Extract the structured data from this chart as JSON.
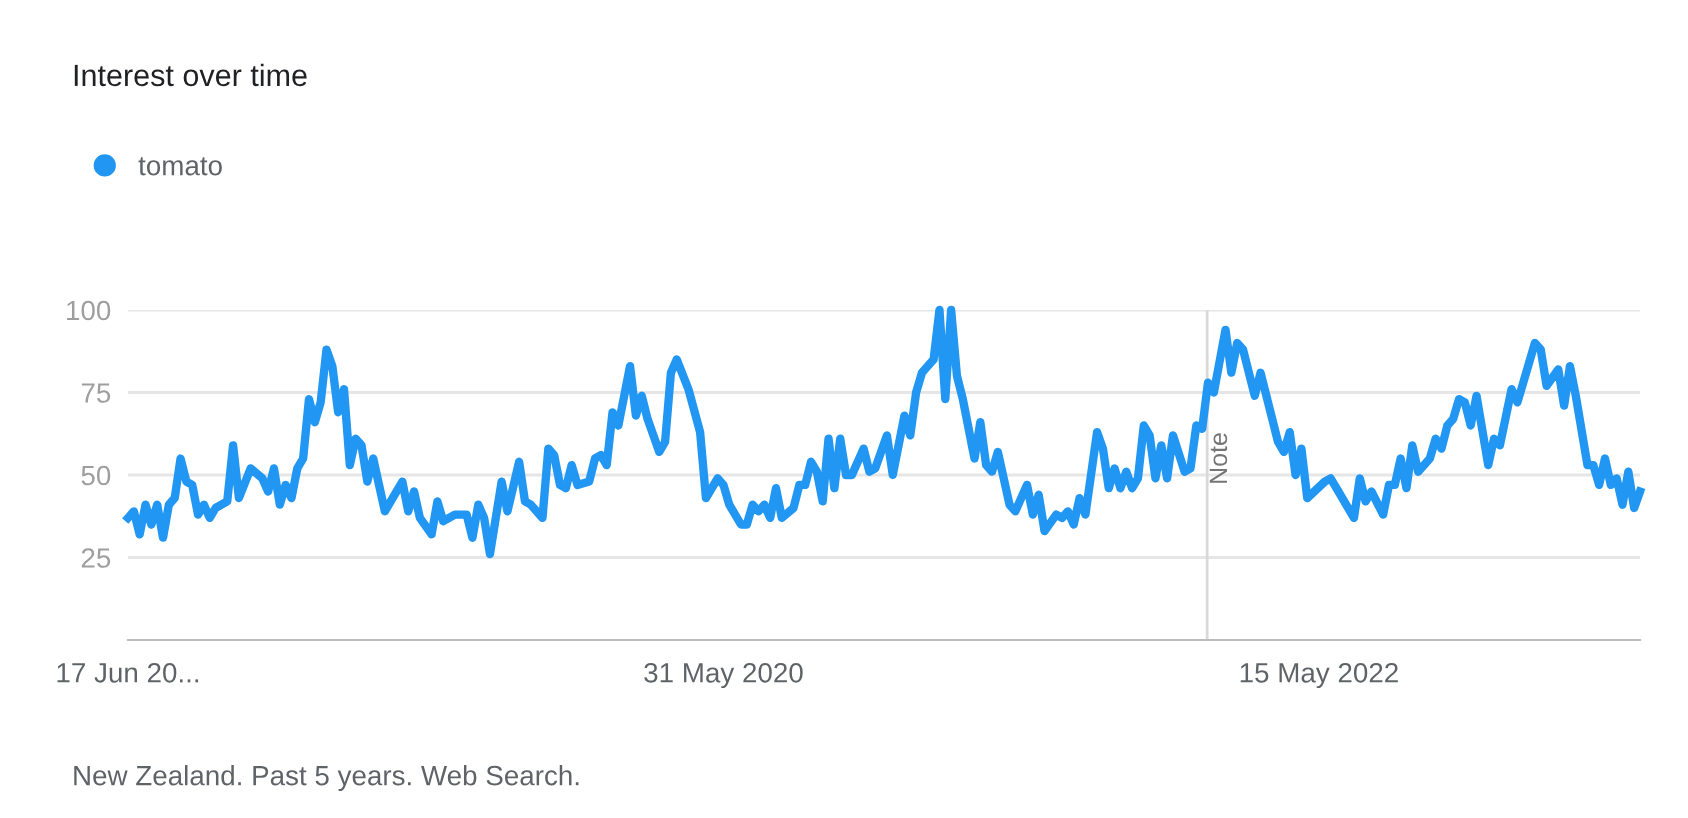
{
  "chart_data": {
    "type": "line",
    "title": "Interest over time",
    "x": [
      "2018-06-17",
      "2018-06-24",
      "2018-07-01",
      "2018-07-08",
      "2018-07-15",
      "2018-07-22",
      "2018-07-29",
      "2018-08-05",
      "2018-08-12",
      "2018-08-19",
      "2018-08-26",
      "2018-09-02",
      "2018-09-09",
      "2018-09-16",
      "2018-09-23",
      "2018-09-30",
      "2018-10-14",
      "2018-10-21",
      "2018-10-28",
      "2018-11-11",
      "2018-11-25",
      "2018-12-02",
      "2018-12-09",
      "2018-12-16",
      "2018-12-23",
      "2018-12-30",
      "2019-01-06",
      "2019-01-13",
      "2019-01-20",
      "2019-01-27",
      "2019-02-03",
      "2019-02-10",
      "2019-02-17",
      "2019-02-24",
      "2019-03-03",
      "2019-03-10",
      "2019-03-17",
      "2019-03-24",
      "2019-03-31",
      "2019-04-07",
      "2019-04-21",
      "2019-04-28",
      "2019-05-12",
      "2019-05-19",
      "2019-05-26",
      "2019-06-02",
      "2019-06-16",
      "2019-06-23",
      "2019-06-30",
      "2019-07-14",
      "2019-07-28",
      "2019-08-04",
      "2019-08-11",
      "2019-08-18",
      "2019-08-25",
      "2019-09-08",
      "2019-09-15",
      "2019-09-29",
      "2019-10-06",
      "2019-10-13",
      "2019-10-27",
      "2019-11-03",
      "2019-11-10",
      "2019-11-17",
      "2019-11-24",
      "2019-12-01",
      "2019-12-08",
      "2019-12-22",
      "2019-12-29",
      "2020-01-05",
      "2020-01-12",
      "2020-01-19",
      "2020-01-26",
      "2020-02-09",
      "2020-02-16",
      "2020-02-23",
      "2020-03-01",
      "2020-03-15",
      "2020-03-22",
      "2020-03-29",
      "2020-04-05",
      "2020-04-19",
      "2020-05-03",
      "2020-05-10",
      "2020-05-24",
      "2020-05-31",
      "2020-06-07",
      "2020-06-21",
      "2020-06-28",
      "2020-07-05",
      "2020-07-12",
      "2020-07-19",
      "2020-07-26",
      "2020-08-02",
      "2020-08-09",
      "2020-08-23",
      "2020-08-30",
      "2020-09-06",
      "2020-09-13",
      "2020-09-20",
      "2020-09-27",
      "2020-10-04",
      "2020-10-11",
      "2020-10-18",
      "2020-10-25",
      "2020-11-01",
      "2020-11-15",
      "2020-11-22",
      "2020-11-29",
      "2020-12-13",
      "2020-12-20",
      "2021-01-03",
      "2021-01-10",
      "2021-01-17",
      "2021-01-24",
      "2021-01-31",
      "2021-02-07",
      "2021-02-14",
      "2021-02-21",
      "2021-02-28",
      "2021-03-07",
      "2021-03-14",
      "2021-03-28",
      "2021-04-04",
      "2021-04-11",
      "2021-04-18",
      "2021-04-25",
      "2021-05-09",
      "2021-05-16",
      "2021-05-30",
      "2021-06-06",
      "2021-06-13",
      "2021-06-20",
      "2021-07-04",
      "2021-07-11",
      "2021-07-18",
      "2021-07-25",
      "2021-08-01",
      "2021-08-08",
      "2021-08-22",
      "2021-08-29",
      "2021-09-05",
      "2021-09-12",
      "2021-09-19",
      "2021-09-26",
      "2021-10-03",
      "2021-10-10",
      "2021-10-17",
      "2021-10-24",
      "2021-10-31",
      "2021-11-07",
      "2021-11-14",
      "2021-11-21",
      "2021-12-05",
      "2021-12-12",
      "2021-12-19",
      "2021-12-26",
      "2022-01-02",
      "2022-01-09",
      "2022-01-23",
      "2022-01-30",
      "2022-02-06",
      "2022-02-13",
      "2022-02-27",
      "2022-03-06",
      "2022-03-27",
      "2022-04-03",
      "2022-04-10",
      "2022-04-17",
      "2022-04-24",
      "2022-05-01",
      "2022-05-22",
      "2022-05-29",
      "2022-06-05",
      "2022-06-26",
      "2022-07-03",
      "2022-07-10",
      "2022-07-17",
      "2022-07-31",
      "2022-08-07",
      "2022-08-14",
      "2022-08-21",
      "2022-08-28",
      "2022-09-04",
      "2022-09-11",
      "2022-09-25",
      "2022-10-02",
      "2022-10-09",
      "2022-10-16",
      "2022-10-23",
      "2022-10-30",
      "2022-11-06",
      "2022-11-13",
      "2022-11-20",
      "2022-12-04",
      "2022-12-11",
      "2022-12-18",
      "2023-01-01",
      "2023-01-08",
      "2023-01-15",
      "2023-01-29",
      "2023-02-05",
      "2023-02-12",
      "2023-02-26",
      "2023-03-05",
      "2023-03-12",
      "2023-03-19",
      "2023-04-02",
      "2023-04-09",
      "2023-04-16",
      "2023-04-23",
      "2023-04-30",
      "2023-05-07",
      "2023-05-14",
      "2023-05-21",
      "2023-05-28",
      "2023-06-04"
    ],
    "series": [
      {
        "name": "tomato",
        "color": "#2196f3",
        "values": [
          37,
          39,
          32,
          41,
          35,
          41,
          31,
          41,
          43,
          55,
          48,
          47,
          38,
          41,
          37,
          40,
          42,
          59,
          43,
          52,
          49,
          45,
          52,
          41,
          47,
          43,
          52,
          55,
          73,
          66,
          72,
          88,
          83,
          69,
          76,
          53,
          61,
          59,
          48,
          55,
          39,
          42,
          48,
          39,
          45,
          37,
          32,
          42,
          36,
          38,
          38,
          31,
          41,
          37,
          26,
          48,
          39,
          54,
          42,
          41,
          37,
          58,
          56,
          47,
          46,
          53,
          47,
          48,
          55,
          56,
          53,
          69,
          65,
          83,
          68,
          74,
          67,
          57,
          60,
          81,
          85,
          76,
          63,
          43,
          49,
          47,
          41,
          35,
          35,
          41,
          39,
          41,
          37,
          46,
          37,
          40,
          47,
          47,
          54,
          51,
          42,
          61,
          46,
          61,
          50,
          50,
          58,
          51,
          52,
          62,
          50,
          68,
          62,
          75,
          81,
          83,
          85,
          100,
          73,
          100,
          80,
          73,
          55,
          66,
          53,
          51,
          57,
          41,
          39,
          47,
          38,
          44,
          33,
          38,
          37,
          39,
          35,
          43,
          38,
          63,
          58,
          46,
          52,
          46,
          51,
          46,
          49,
          65,
          62,
          49,
          59,
          49,
          62,
          51,
          52,
          65,
          64,
          78,
          75,
          94,
          81,
          90,
          88,
          74,
          81,
          60,
          57,
          63,
          50,
          58,
          43,
          48,
          49,
          46,
          37,
          49,
          42,
          45,
          38,
          47,
          47,
          55,
          46,
          59,
          51,
          55,
          61,
          58,
          65,
          67,
          73,
          72,
          65,
          74,
          53,
          61,
          59,
          76,
          72,
          78,
          90,
          88,
          77,
          82,
          71,
          83,
          74,
          53,
          53,
          47,
          55,
          47,
          49,
          41,
          51,
          40,
          45
        ]
      }
    ],
    "xlim": [
      "2018-06-17",
      "2023-06-04"
    ],
    "xticks": [
      {
        "value": "2018-06-17",
        "label": "17 Jun 20..."
      },
      {
        "value": "2020-05-31",
        "label": "31 May 2020"
      },
      {
        "value": "2022-05-15",
        "label": "15 May 2022"
      }
    ],
    "ylim": [
      0,
      100
    ],
    "yticks": [
      25,
      50,
      75,
      100
    ],
    "grid": "y",
    "legend": "top left",
    "marker": "none",
    "line_style": "solid",
    "ref_lines": [
      {
        "axis": "x",
        "value": "2022-01-01",
        "label": "Note",
        "color": "#d9d9d9"
      }
    ],
    "annotations": [
      "New Zealand. Past 5 years. Web Search."
    ]
  }
}
